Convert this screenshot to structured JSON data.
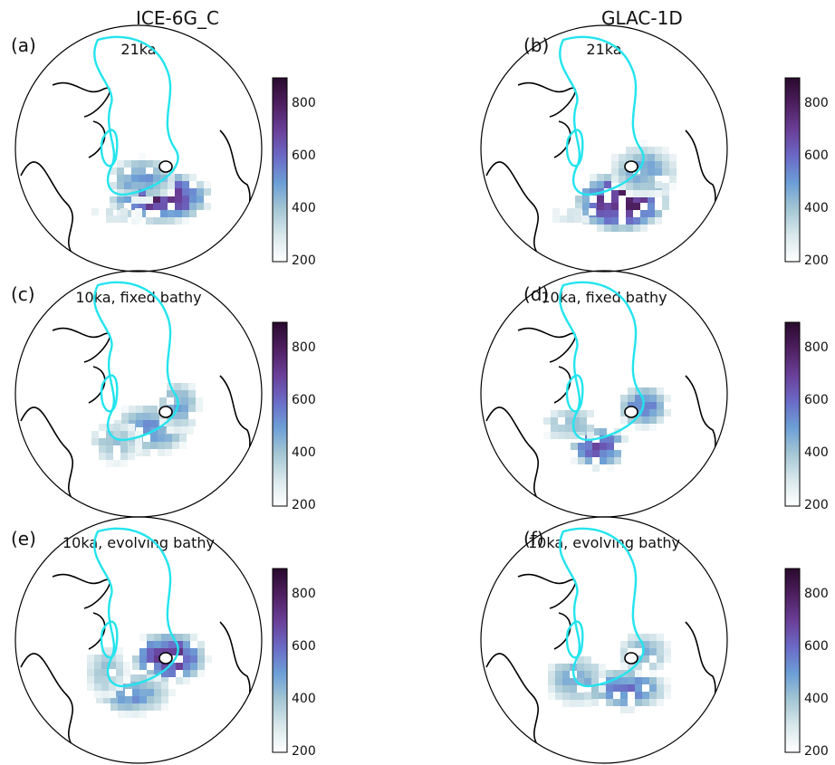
{
  "columns": [
    "ICE-6G_C",
    "GLAC-1D"
  ],
  "colorbar": {
    "min": 200,
    "max": 900,
    "ticks": [
      200,
      400,
      600,
      800
    ],
    "colors": [
      "#ffffff",
      "#d9e8ec",
      "#a4c6d4",
      "#6c9fd6",
      "#6b6ac6",
      "#6a3f98",
      "#4e1f60",
      "#2a0a2e"
    ]
  },
  "outline_color": "#22e4ee",
  "coast_color": "#000000",
  "panels": [
    {
      "label": "(a)",
      "title": "21ka"
    },
    {
      "label": "(b)",
      "title": "21ka"
    },
    {
      "label": "(c)",
      "title": "10ka, fixed bathy"
    },
    {
      "label": "(d)",
      "title": "10ka, fixed bathy"
    },
    {
      "label": "(e)",
      "title": "10ka, evolving bathy"
    },
    {
      "label": "(f)",
      "title": "10ka, evolving bathy"
    }
  ]
}
